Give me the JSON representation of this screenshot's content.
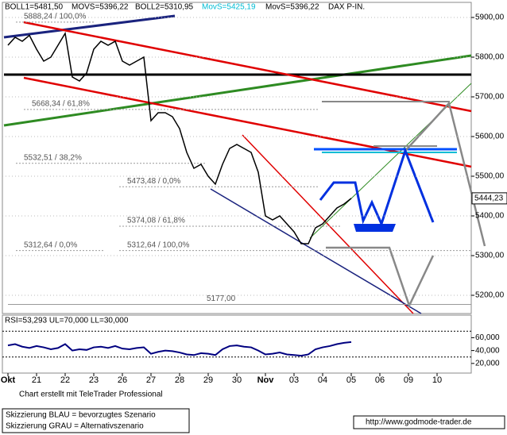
{
  "chart_data": {
    "type": "line",
    "header": [
      "BOLL1=5481,50",
      "MOVS=5396,22",
      "BOLL2=5310,95",
      "MovS=5425,19",
      "MovS=5396,22",
      "DAX P-IN."
    ],
    "categories": [
      "Okt",
      null,
      null,
      null,
      "21",
      null,
      null,
      null,
      "22",
      null,
      null,
      null,
      "23",
      null,
      null,
      null,
      "26",
      null,
      null,
      null,
      "27",
      null,
      null,
      null,
      "28",
      null,
      null,
      null,
      "29",
      null,
      null,
      null,
      "30",
      null,
      null,
      null,
      "Nov",
      null,
      null,
      null,
      "03",
      null,
      null,
      null,
      "04",
      null,
      null,
      null,
      "05",
      null,
      null,
      null,
      "06",
      null,
      null,
      null,
      "09",
      null,
      null,
      null,
      "10"
    ],
    "series": [
      {
        "color": "#000000",
        "values": [
          5830,
          5850,
          5840,
          5855,
          5820,
          5790,
          5800,
          5830,
          5860,
          5750,
          5740,
          5760,
          5820,
          5840,
          5830,
          5840,
          5790,
          5780,
          5790,
          5800,
          5640,
          5660,
          5660,
          5650,
          5620,
          5560,
          5520,
          5530,
          5500,
          5480,
          5530,
          5570,
          5580,
          5570,
          5560,
          5510,
          5400,
          5390,
          5400,
          5380,
          5360,
          5330,
          5330,
          5370,
          5380,
          5400,
          5420,
          5430,
          5444.23,
          null,
          null,
          null,
          null,
          null,
          null,
          null,
          null,
          null,
          null,
          null,
          null
        ]
      }
    ],
    "last_label": "5444,23",
    "ylim": [
      5154,
      5938
    ],
    "yticks": [
      {
        "value": 5200,
        "label": "5200,00"
      },
      {
        "value": 5300,
        "label": "5300,00"
      },
      {
        "value": 5400,
        "label": "5400,00"
      },
      {
        "value": 5500,
        "label": "5500,00"
      },
      {
        "value": 5600,
        "label": "5600,00"
      },
      {
        "value": 5700,
        "label": "5700,00"
      },
      {
        "value": 5800,
        "label": "5800,00"
      },
      {
        "value": 5900,
        "label": "5900,00"
      }
    ],
    "levels": [
      {
        "value": 5888.24,
        "label": "5888,24 / 100,0%"
      },
      {
        "value": 5668.34,
        "label": "5668,34 / 61,8%"
      },
      {
        "value": 5532.51,
        "label": "5532,51 / 38,2%"
      },
      {
        "value": 5473.48,
        "label": "5473,48 / 0,0%"
      },
      {
        "value": 5374.08,
        "label": "5374,08 / 61,8%"
      },
      {
        "value": 5312.64,
        "label": "5312,64 / 0,0%"
      },
      {
        "value": 5312.64,
        "label": "5312,64 / 100,0%"
      },
      {
        "value": 5177,
        "label": "5177,00"
      }
    ],
    "rsi": {
      "title": "RSI=53,293 UL=70,000 LL=30,000",
      "color": "#000080",
      "values": [
        48,
        50,
        46,
        44,
        47,
        45,
        42,
        44,
        50,
        40,
        42,
        41,
        45,
        46,
        44,
        47,
        43,
        42,
        44,
        45,
        35,
        38,
        40,
        39,
        37,
        34,
        33,
        36,
        35,
        33,
        42,
        47,
        48,
        46,
        45,
        40,
        34,
        35,
        37,
        34,
        33,
        32,
        34,
        42,
        45,
        47,
        50,
        52,
        53.293
      ],
      "upper": 70,
      "lower": 30,
      "ylim": [
        5,
        95
      ],
      "yticks": [
        {
          "value": 20,
          "label": "20,000"
        },
        {
          "value": 40,
          "label": "40,000"
        },
        {
          "value": 60,
          "label": "60,000"
        }
      ]
    },
    "credit": "Chart erstellt mit TeleTrader Professional",
    "legend_blue": "Skizzierung BLAU = bevorzugtes Szenario",
    "legend_grey": "Skizzierung GRAU = Alternativszenario",
    "url": "http://www.godmode-trader.de"
  }
}
